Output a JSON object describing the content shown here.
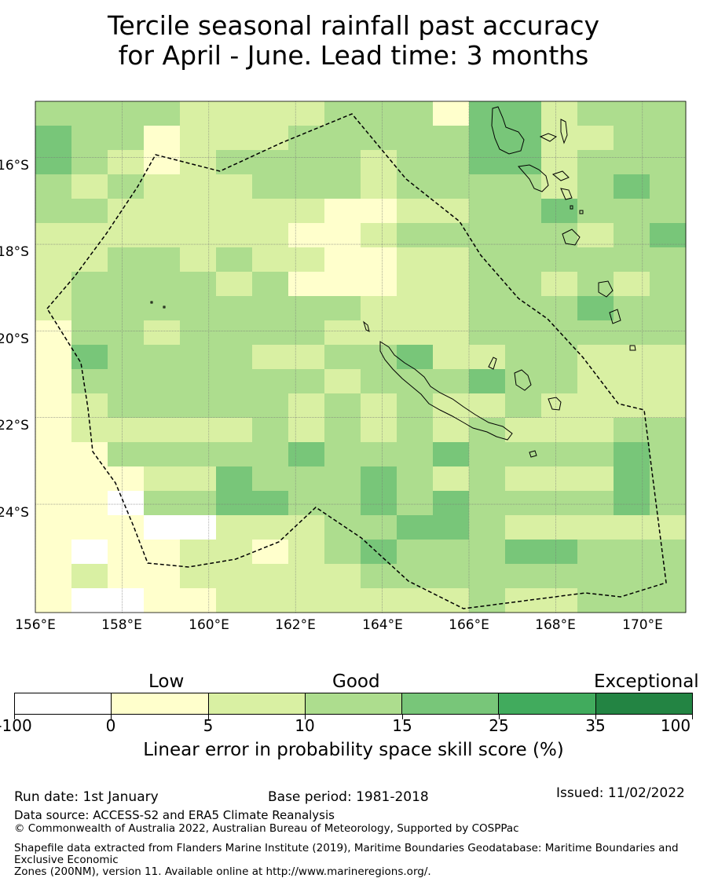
{
  "title": {
    "line1": "Tercile seasonal rainfall past accuracy",
    "line2": "for April - June. Lead time: 3 months"
  },
  "map": {
    "lon_range": [
      156.0,
      171.0
    ],
    "lat_range": [
      -26.5,
      -14.7
    ],
    "x_ticks": [
      "156°E",
      "158°E",
      "160°E",
      "162°E",
      "164°E",
      "166°E",
      "168°E",
      "170°E"
    ],
    "y_ticks": [
      "16°S",
      "18°S",
      "20°S",
      "22°S",
      "24°S"
    ],
    "grid_columns": 18,
    "grid_rows": 21,
    "cell_class_legend": "0=-100..0, 1=0..5, 2=5..10, 3=10..15, 4=15..25, 5=25..35, 6=35..100",
    "cells": [
      "333322223331442333",
      "433122233333442233",
      "432123333233442333",
      "323222333233332343",
      "332222221122334333",
      "222222211233333234",
      "223323221122333333",
      "233332311122332323",
      "233333333222333433",
      "133233332222333333",
      "143333223342233222",
      "133333332333433222",
      "123333323232232222",
      "122222323232322233",
      "113333343334333343",
      "111224333432322243",
      "110334433434333343",
      "111002223344322222",
      "101122123433344333",
      "121122222333333333",
      "100112222222322333"
    ],
    "palette": [
      "#ffffff",
      "#ffffcc",
      "#d9f0a3",
      "#addd8e",
      "#78c679",
      "#41ab5d",
      "#238443"
    ]
  },
  "legend": {
    "categories": [
      "Low",
      "Good",
      "Exceptional"
    ],
    "ticks": [
      "-100",
      "0",
      "5",
      "10",
      "15",
      "25",
      "35",
      "100"
    ],
    "colors": [
      "#ffffff",
      "#ffffcc",
      "#d9f0a3",
      "#addd8e",
      "#78c679",
      "#41ab5d",
      "#238443"
    ],
    "label": "Linear error in probability space skill score (%)"
  },
  "footer": {
    "run_date": "Run date: 1st January",
    "base_period": "Base period: 1981-2018",
    "issued": "Issued: 11/02/2022",
    "data_source": "Data source: ACCESS-S2 and ERA5 Climate Reanalysis",
    "copyright": "© Commonwealth of Australia 2022, Australian Bureau of Meteorology, Supported by COSPPac",
    "shapefile_line1": "Shapefile data extracted from Flanders Marine Institute (2019), Maritime Boundaries Geodatabase: Maritime Boundaries and Exclusive Economic",
    "shapefile_line2": "Zones (200NM), version 11. Available online at http://www.marineregions.org/."
  }
}
